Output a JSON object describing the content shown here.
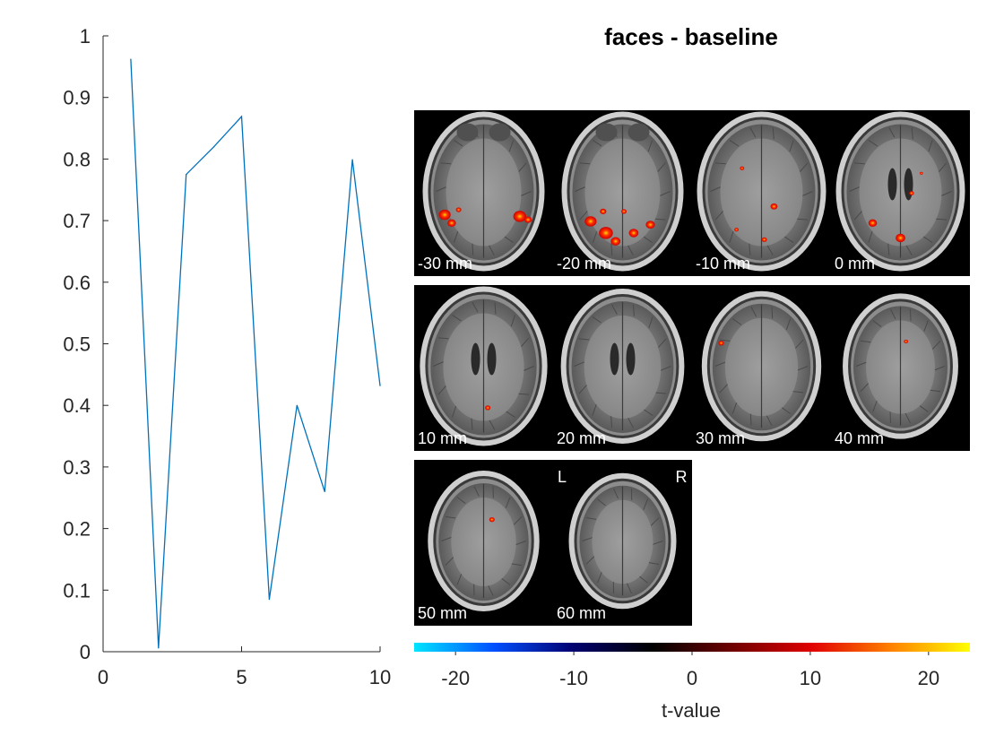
{
  "chart_data": [
    {
      "type": "line",
      "x": [
        1,
        2,
        3,
        4,
        5,
        6,
        7,
        8,
        9,
        10
      ],
      "series": [
        {
          "values": [
            0.962,
            0.006,
            0.775,
            0.82,
            0.869,
            0.085,
            0.4,
            0.26,
            0.799,
            0.432
          ],
          "color": "#0072BD"
        }
      ],
      "xlim": [
        0,
        10
      ],
      "ylim": [
        0,
        1
      ],
      "xticks": [
        0,
        5,
        10
      ],
      "yticks": [
        0,
        0.1,
        0.2,
        0.3,
        0.4,
        0.5,
        0.6,
        0.7,
        0.8,
        0.9,
        1
      ],
      "xtick_labels": [
        "0",
        "5",
        "10"
      ],
      "ytick_labels": [
        "0",
        "0.1",
        "0.2",
        "0.3",
        "0.4",
        "0.5",
        "0.6",
        "0.7",
        "0.8",
        "0.9",
        "1"
      ],
      "title": "",
      "xlabel": "",
      "ylabel": "",
      "grid": false
    },
    {
      "type": "heatmap",
      "title": "faces - baseline",
      "slices": [
        {
          "label": "-30 mm",
          "z": -30,
          "blobs": [
            [
              0.22,
              0.63,
              2.2
            ],
            [
              0.27,
              0.68,
              1.6
            ],
            [
              0.76,
              0.64,
              2.4
            ],
            [
              0.82,
              0.66,
              1.4
            ],
            [
              0.32,
              0.6,
              1.0
            ]
          ]
        },
        {
          "label": "-20 mm",
          "z": -20,
          "blobs": [
            [
              0.27,
              0.67,
              2.2
            ],
            [
              0.38,
              0.74,
              2.6
            ],
            [
              0.45,
              0.79,
              1.8
            ],
            [
              0.58,
              0.74,
              1.8
            ],
            [
              0.7,
              0.69,
              1.7
            ],
            [
              0.51,
              0.61,
              1.0
            ],
            [
              0.36,
              0.61,
              1.2
            ]
          ]
        },
        {
          "label": "-10 mm",
          "z": -10,
          "blobs": [
            [
              0.36,
              0.35,
              0.8
            ],
            [
              0.59,
              0.58,
              1.3
            ],
            [
              0.52,
              0.78,
              1.0
            ],
            [
              0.32,
              0.72,
              0.8
            ]
          ]
        },
        {
          "label": "0 mm",
          "z": 0,
          "blobs": [
            [
              0.3,
              0.68,
              1.6
            ],
            [
              0.5,
              0.77,
              1.8
            ],
            [
              0.58,
              0.5,
              0.9
            ],
            [
              0.65,
              0.38,
              0.6
            ]
          ]
        },
        {
          "label": "10 mm",
          "z": 10,
          "blobs": [
            [
              0.53,
              0.74,
              1.0
            ]
          ]
        },
        {
          "label": "20 mm",
          "z": 20,
          "blobs": []
        },
        {
          "label": "30 mm",
          "z": 30,
          "blobs": [
            [
              0.21,
              0.35,
              1.0
            ]
          ]
        },
        {
          "label": "40 mm",
          "z": 40,
          "blobs": [
            [
              0.54,
              0.34,
              0.8
            ]
          ]
        },
        {
          "label": "50 mm",
          "z": 50,
          "blobs": [
            [
              0.56,
              0.36,
              1.0
            ]
          ]
        },
        {
          "label": "60 mm",
          "z": 60,
          "blobs": []
        }
      ],
      "orientation_labels": {
        "left": "L",
        "right": "R"
      },
      "colorbar": {
        "label": "t-value",
        "range": [
          -23.5,
          23.5
        ],
        "ticks": [
          -20,
          -10,
          0,
          10,
          20
        ],
        "tick_labels": [
          "-20",
          "-10",
          "0",
          "10",
          "20"
        ],
        "colors": [
          "#00E5FF",
          "#0050FF",
          "#000070",
          "#000000",
          "#6E0000",
          "#E00000",
          "#FF8000",
          "#FFFF00"
        ]
      }
    }
  ]
}
